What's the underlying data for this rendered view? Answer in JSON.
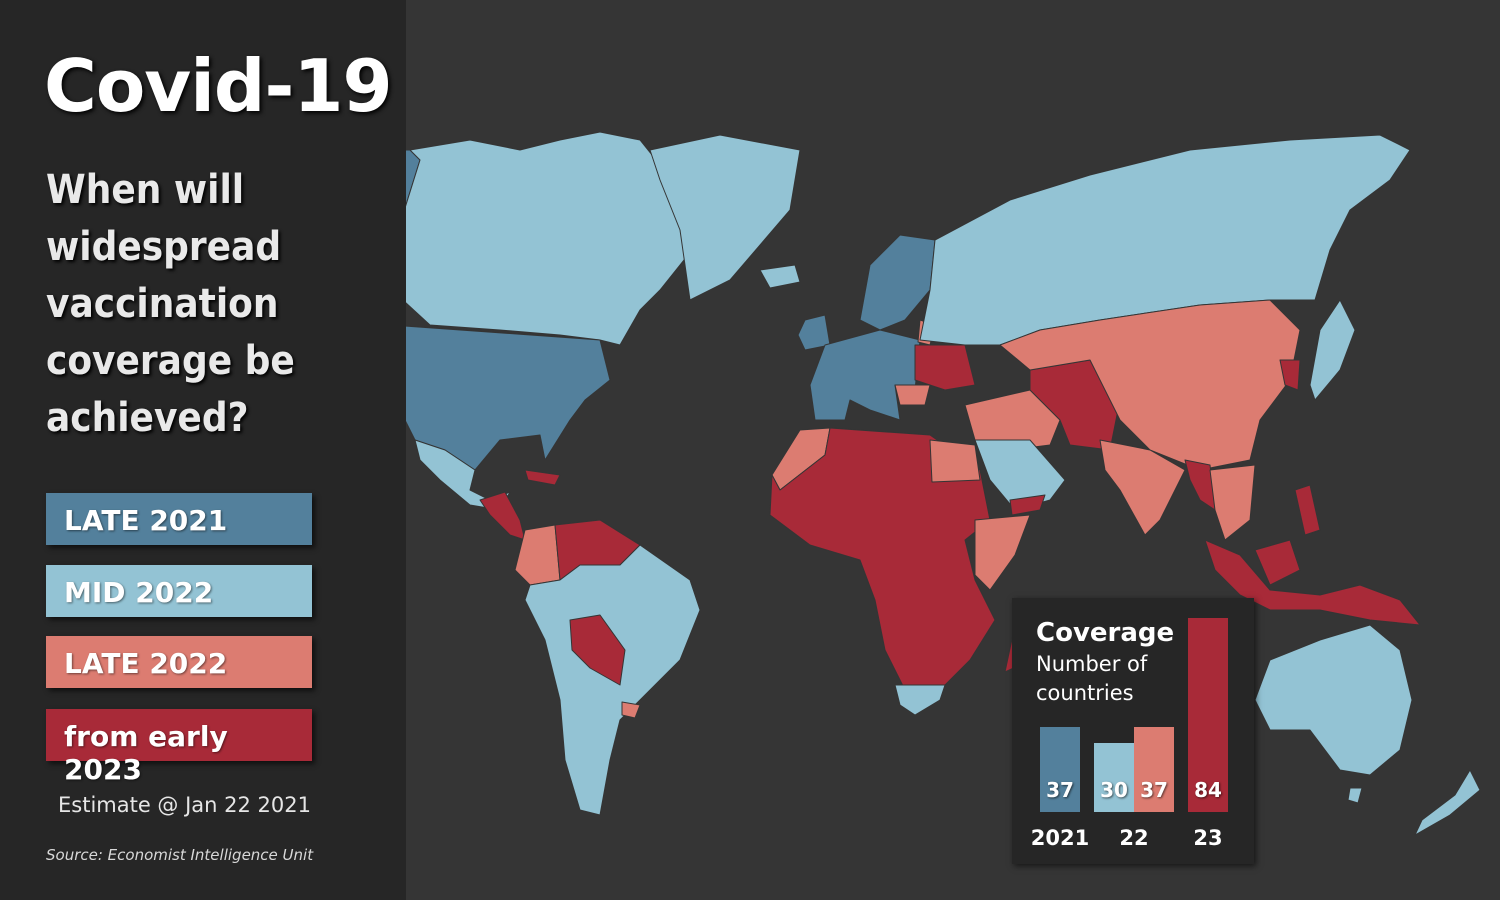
{
  "title": "Covid-19",
  "question": "When will widespread vaccination coverage be achieved?",
  "legend": [
    {
      "label": "LATE 2021",
      "color": "#53809c"
    },
    {
      "label": "MID 2022",
      "color": "#93c3d4"
    },
    {
      "label": "LATE 2022",
      "color": "#dc7c71"
    },
    {
      "label": "from early 2023",
      "color": "#a82a38"
    }
  ],
  "estimate": "Estimate @ Jan 22 2021",
  "source": "Source: Economist Intelligence Unit",
  "coverage": {
    "title": "Coverage",
    "subtitle": "Number of countries",
    "bars": [
      {
        "value": 37,
        "color": "#53809c"
      },
      {
        "value": 30,
        "color": "#93c3d4"
      },
      {
        "value": 37,
        "color": "#dc7c71"
      },
      {
        "value": 84,
        "color": "#a82a38"
      }
    ],
    "years": [
      "2021",
      "22",
      "23"
    ]
  },
  "map": {
    "background": "#353535",
    "regions": [
      {
        "name": "alaska",
        "category": "late-2021"
      },
      {
        "name": "usa",
        "category": "late-2021"
      },
      {
        "name": "canada",
        "category": "mid-2022"
      },
      {
        "name": "greenland",
        "category": "mid-2022"
      },
      {
        "name": "mexico",
        "category": "mid-2022"
      },
      {
        "name": "central-america",
        "category": "from-early-2023"
      },
      {
        "name": "colombia-ecuador",
        "category": "late-2022"
      },
      {
        "name": "venezuela-guianas",
        "category": "from-early-2023"
      },
      {
        "name": "south-america",
        "category": "mid-2022"
      },
      {
        "name": "bolivia-paraguay",
        "category": "from-early-2023"
      },
      {
        "name": "uruguay",
        "category": "late-2022"
      },
      {
        "name": "western-europe",
        "category": "late-2021"
      },
      {
        "name": "scandinavia",
        "category": "late-2021"
      },
      {
        "name": "ukraine-belarus",
        "category": "from-early-2023"
      },
      {
        "name": "russia",
        "category": "mid-2022"
      },
      {
        "name": "morocco",
        "category": "late-2022"
      },
      {
        "name": "africa",
        "category": "from-early-2023"
      },
      {
        "name": "egypt",
        "category": "late-2022"
      },
      {
        "name": "horn-of-africa",
        "category": "late-2022"
      },
      {
        "name": "southern-africa",
        "category": "mid-2022"
      },
      {
        "name": "madagascar",
        "category": "from-early-2023"
      },
      {
        "name": "middle-east",
        "category": "late-2022"
      },
      {
        "name": "arabian-peninsula",
        "category": "mid-2022"
      },
      {
        "name": "yemen",
        "category": "from-early-2023"
      },
      {
        "name": "central-asia",
        "category": "from-early-2023"
      },
      {
        "name": "china",
        "category": "late-2022"
      },
      {
        "name": "india",
        "category": "late-2022"
      },
      {
        "name": "myanmar",
        "category": "from-early-2023"
      },
      {
        "name": "thailand",
        "category": "late-2022"
      },
      {
        "name": "japan",
        "category": "mid-2022"
      },
      {
        "name": "korea",
        "category": "from-early-2023"
      },
      {
        "name": "indonesia",
        "category": "from-early-2023"
      },
      {
        "name": "philippines",
        "category": "from-early-2023"
      },
      {
        "name": "australia",
        "category": "mid-2022"
      },
      {
        "name": "new-zealand",
        "category": "mid-2022"
      }
    ]
  }
}
